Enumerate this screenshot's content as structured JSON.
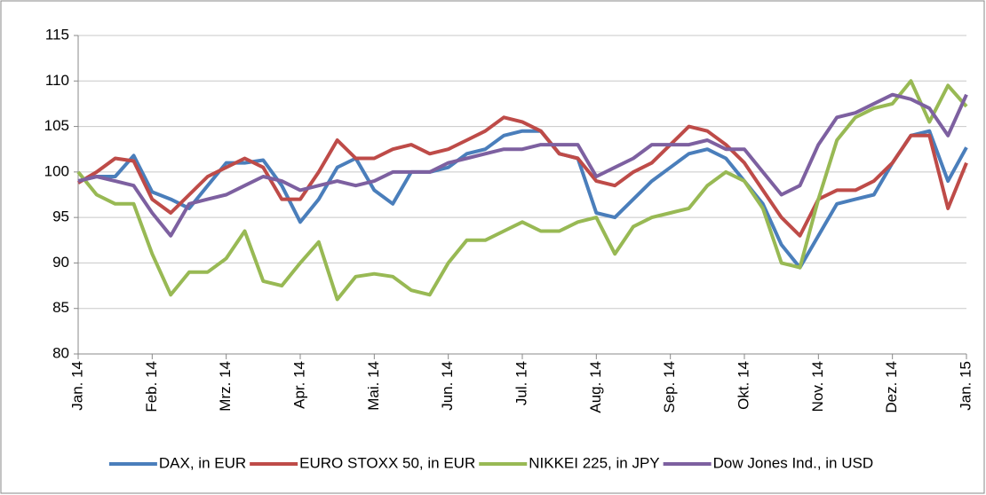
{
  "chart_data": {
    "type": "line",
    "categories": [
      "Jan. 14",
      null,
      null,
      null,
      "Feb. 14",
      null,
      null,
      null,
      "Mrz. 14",
      null,
      null,
      null,
      "Apr. 14",
      null,
      null,
      null,
      "Mai. 14",
      null,
      null,
      null,
      "Jun. 14",
      null,
      null,
      null,
      "Jul. 14",
      null,
      null,
      null,
      "Aug. 14",
      null,
      null,
      null,
      "Sep. 14",
      null,
      null,
      null,
      "Okt. 14",
      null,
      null,
      null,
      "Nov. 14",
      null,
      null,
      null,
      "Dez. 14",
      null,
      null,
      null,
      "Jan. 15"
    ],
    "series": [
      {
        "name": "DAX, in EUR",
        "color": "#4a7ebb",
        "values": [
          99,
          99.5,
          99.5,
          101.8,
          97.8,
          97,
          96,
          98.5,
          101,
          101,
          101.3,
          98.5,
          94.5,
          97,
          100.5,
          101.5,
          98,
          96.5,
          100,
          100,
          100.5,
          102,
          102.5,
          104,
          104.5,
          104.5,
          102,
          101.5,
          95.5,
          95,
          97,
          99,
          100.5,
          102,
          102.5,
          101.5,
          99,
          96.5,
          92,
          89.5,
          93,
          96.5,
          97,
          97.5,
          101,
          104,
          104.5,
          99,
          102.7
        ]
      },
      {
        "name": "EURO STOXX 50, in EUR",
        "color": "#be4b48",
        "values": [
          98.8,
          100,
          101.5,
          101.2,
          97,
          95.5,
          97.5,
          99.5,
          100.5,
          101.5,
          100.5,
          97,
          97,
          100,
          103.5,
          101.5,
          101.5,
          102.5,
          103,
          102,
          102.5,
          103.5,
          104.5,
          106,
          105.5,
          104.5,
          102,
          101.5,
          99,
          98.5,
          100,
          101,
          103,
          105,
          104.5,
          103,
          101,
          98,
          95,
          93,
          97,
          98,
          98,
          99,
          101,
          104,
          104,
          96,
          101
        ]
      },
      {
        "name": "NIKKEI 225, in JPY",
        "color": "#98b954",
        "values": [
          100,
          97.5,
          96.5,
          96.5,
          91,
          86.5,
          89,
          89,
          90.5,
          93.5,
          88,
          87.5,
          90,
          92.3,
          86,
          88.5,
          88.8,
          88.5,
          87,
          86.5,
          90,
          92.5,
          92.5,
          93.5,
          94.5,
          93.5,
          93.5,
          94.5,
          95,
          91,
          94,
          95,
          95.5,
          96,
          98.5,
          100,
          99,
          96,
          90,
          89.5,
          97,
          103.5,
          106,
          107,
          107.5,
          110,
          105.5,
          109.5,
          107.2
        ]
      },
      {
        "name": "Dow Jones Ind., in USD",
        "color": "#7d60a0",
        "values": [
          99,
          99.5,
          99,
          98.5,
          95.5,
          93,
          96.5,
          97,
          97.5,
          98.5,
          99.5,
          99,
          98,
          98.5,
          99,
          98.5,
          99,
          100,
          100,
          100,
          101,
          101.5,
          102,
          102.5,
          102.5,
          103,
          103,
          103,
          99.5,
          100.5,
          101.5,
          103,
          103,
          103,
          103.5,
          102.5,
          102.5,
          100,
          97.5,
          98.5,
          103,
          106,
          106.5,
          107.5,
          108.5,
          108,
          107,
          104,
          108.5
        ]
      }
    ],
    "ylim": [
      80,
      115
    ],
    "yticks": [
      80,
      85,
      90,
      95,
      100,
      105,
      110,
      115
    ],
    "grid": true,
    "legend": "bottom"
  }
}
